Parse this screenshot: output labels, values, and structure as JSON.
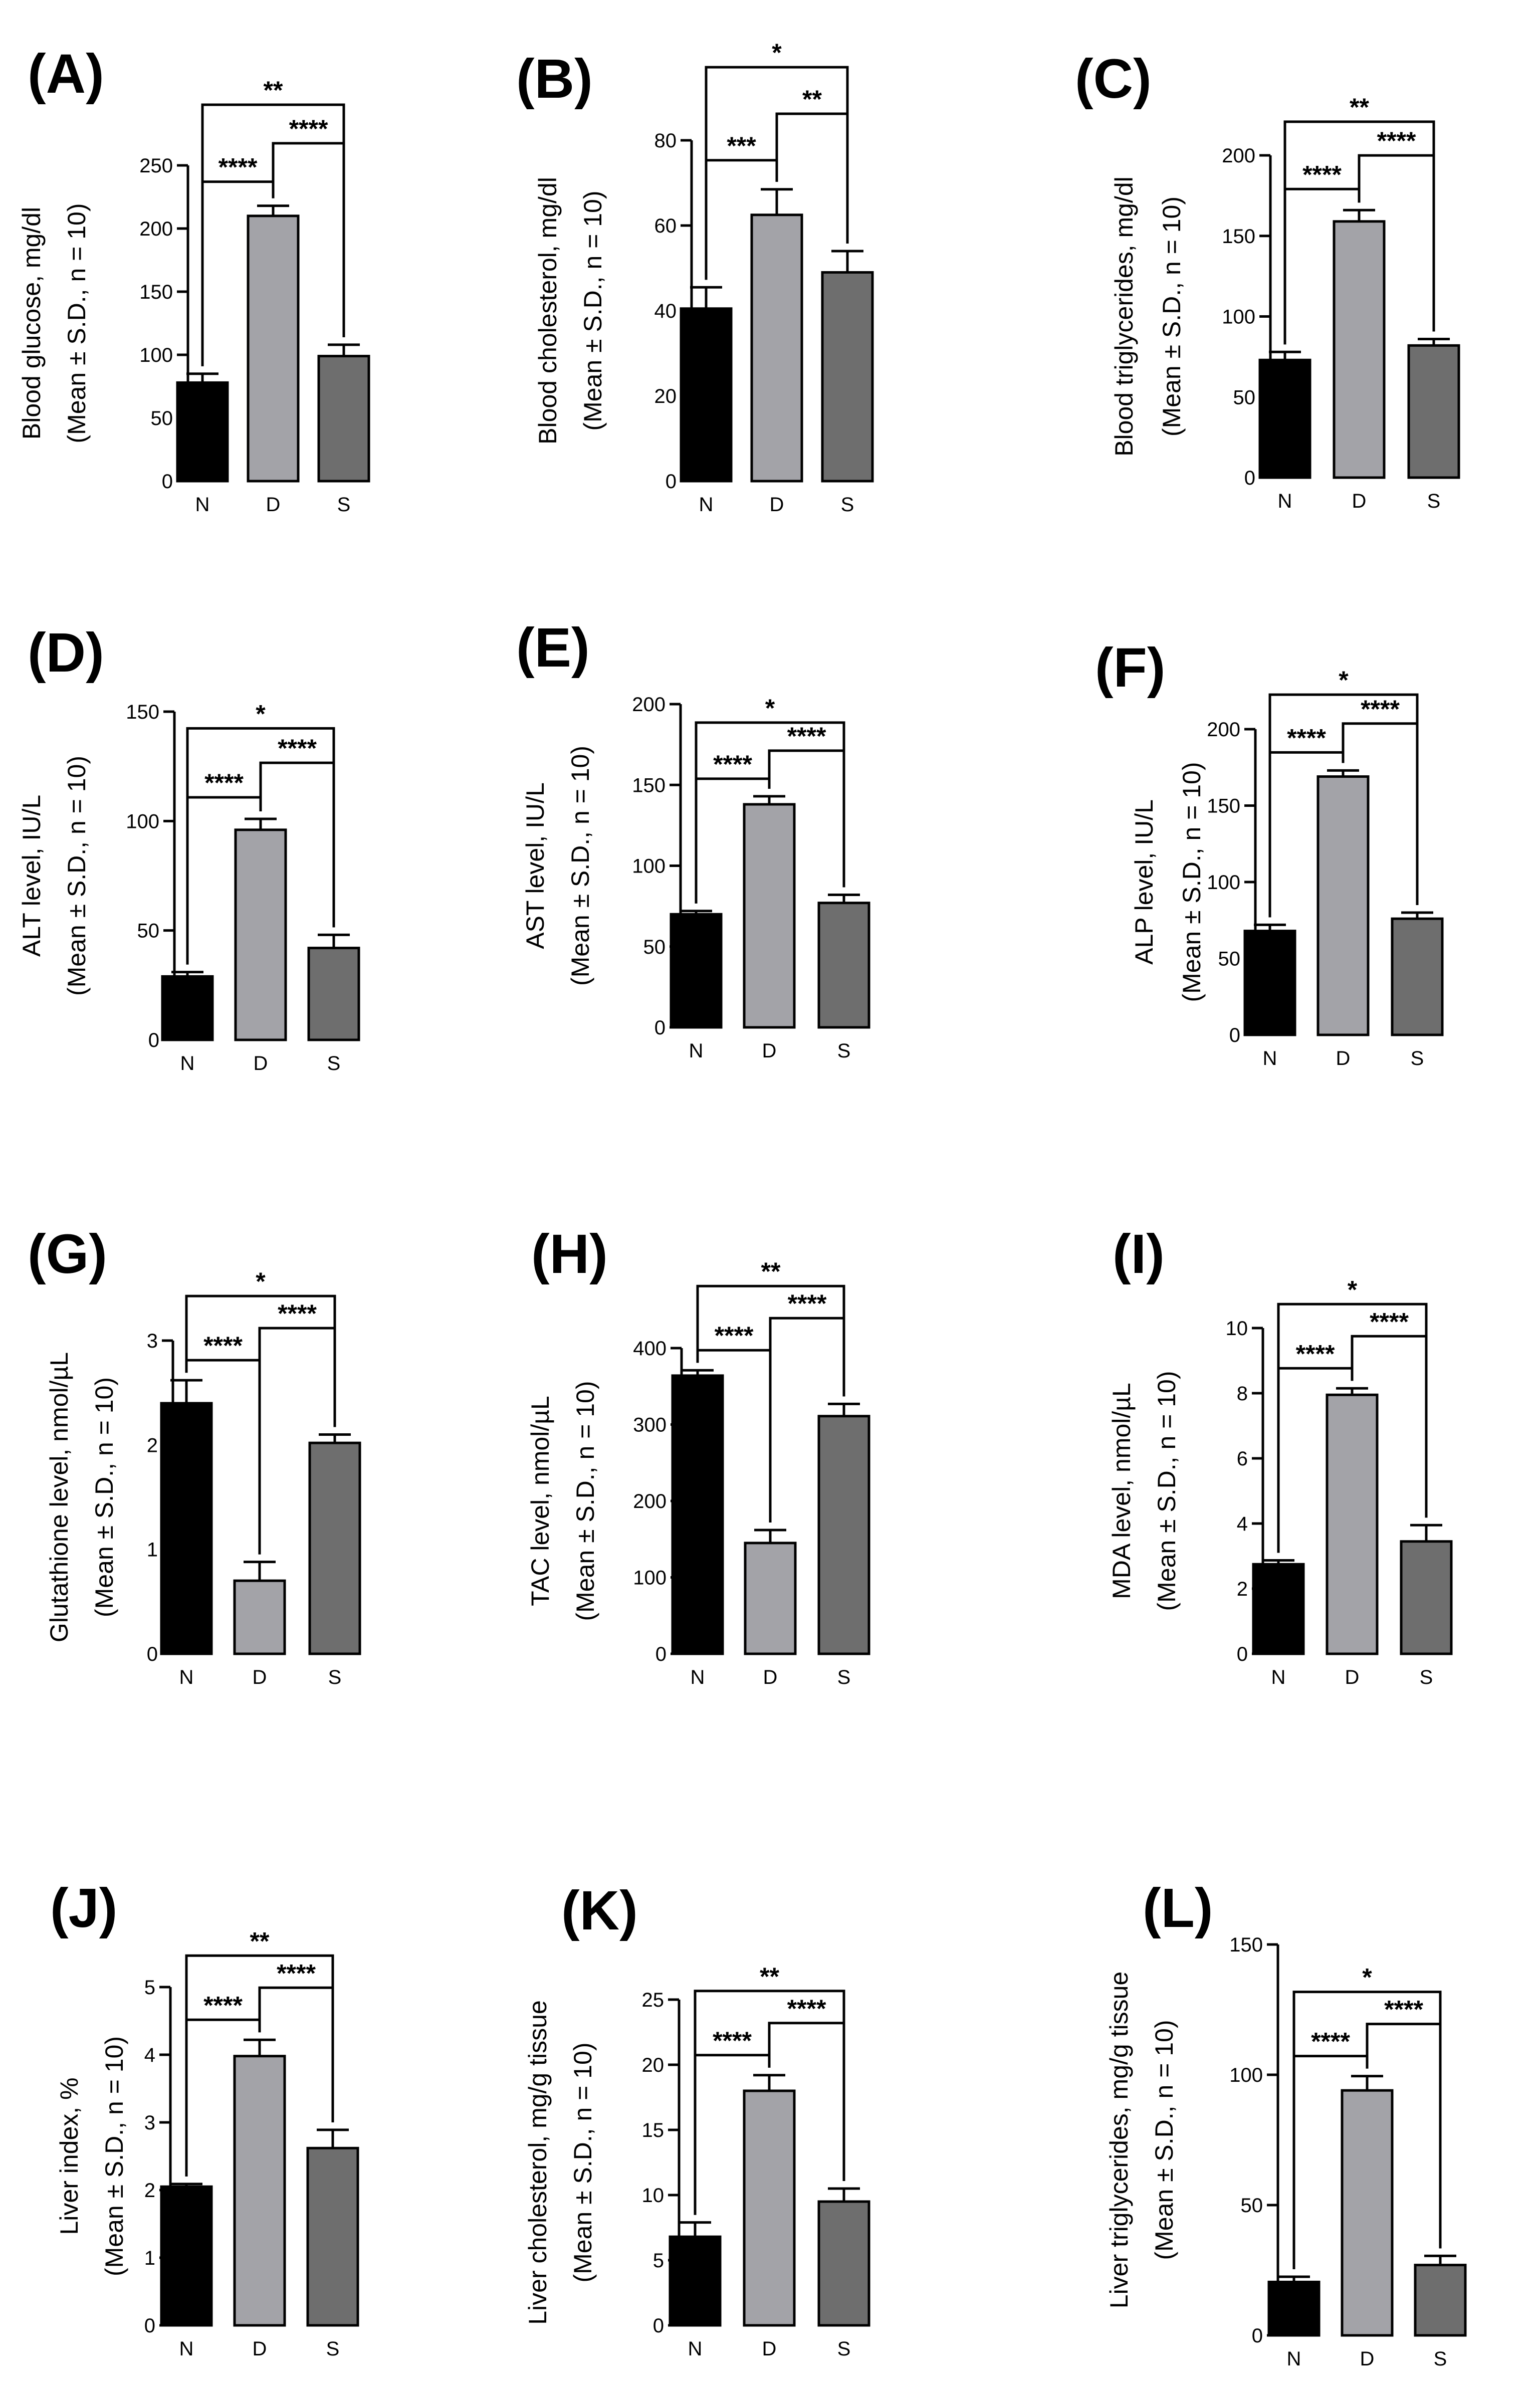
{
  "figure": {
    "groups": [
      "N",
      "D",
      "S"
    ],
    "colors": {
      "N": "#000000",
      "D": "#a3a3a8",
      "S": "#6e6e6e",
      "axis": "#000000"
    }
  },
  "chart_data": [
    {
      "id": "A",
      "label": "(A)",
      "type": "bar",
      "categories": [
        "N",
        "D",
        "S"
      ],
      "values": [
        78,
        210,
        99
      ],
      "errors": [
        7,
        8,
        9
      ],
      "ylabel": [
        "Blood glucose, mg/dl",
        "(Mean ± S.D., n = 10)"
      ],
      "ylim": [
        0,
        250
      ],
      "yticks": [
        0,
        50,
        100,
        150,
        200,
        250
      ],
      "significance": [
        {
          "from": "N",
          "to": "D",
          "label": "****"
        },
        {
          "from": "D",
          "to": "S",
          "label": "****"
        },
        {
          "from": "N",
          "to": "S",
          "label": "**"
        }
      ]
    },
    {
      "id": "B",
      "label": "(B)",
      "type": "bar",
      "categories": [
        "N",
        "D",
        "S"
      ],
      "values": [
        40.5,
        62.5,
        49
      ],
      "errors": [
        5,
        6,
        5
      ],
      "ylabel": [
        "Blood cholesterol, mg/dl",
        "(Mean ± S.D., n = 10)"
      ],
      "ylim": [
        0,
        80
      ],
      "yticks": [
        0,
        20,
        40,
        60,
        80
      ],
      "significance": [
        {
          "from": "N",
          "to": "D",
          "label": "***"
        },
        {
          "from": "D",
          "to": "S",
          "label": "**"
        },
        {
          "from": "N",
          "to": "S",
          "label": "*"
        }
      ]
    },
    {
      "id": "C",
      "label": "(C)",
      "type": "bar",
      "categories": [
        "N",
        "D",
        "S"
      ],
      "values": [
        73,
        159,
        82
      ],
      "errors": [
        5,
        7,
        4
      ],
      "ylabel": [
        "Blood triglycerides, mg/dl",
        "(Mean ± S.D., n = 10)"
      ],
      "ylim": [
        0,
        200
      ],
      "yticks": [
        0,
        50,
        100,
        150,
        200
      ],
      "significance": [
        {
          "from": "N",
          "to": "D",
          "label": "****"
        },
        {
          "from": "D",
          "to": "S",
          "label": "****"
        },
        {
          "from": "N",
          "to": "S",
          "label": "**"
        }
      ]
    },
    {
      "id": "D",
      "label": "(D)",
      "type": "bar",
      "categories": [
        "N",
        "D",
        "S"
      ],
      "values": [
        29,
        96,
        42
      ],
      "errors": [
        2,
        5,
        6
      ],
      "ylabel": [
        "ALT level, IU/L",
        "(Mean ± S.D., n = 10)"
      ],
      "ylim": [
        0,
        150
      ],
      "yticks": [
        0,
        50,
        100,
        150
      ],
      "significance": [
        {
          "from": "N",
          "to": "D",
          "label": "****"
        },
        {
          "from": "D",
          "to": "S",
          "label": "****"
        },
        {
          "from": "N",
          "to": "S",
          "label": "*"
        }
      ]
    },
    {
      "id": "E",
      "label": "(E)",
      "type": "bar",
      "categories": [
        "N",
        "D",
        "S"
      ],
      "values": [
        70,
        138,
        77
      ],
      "errors": [
        2,
        5,
        5
      ],
      "ylabel": [
        "AST level,  IU/L",
        "(Mean ± S.D., n = 10)"
      ],
      "ylim": [
        0,
        200
      ],
      "yticks": [
        0,
        50,
        100,
        150,
        200
      ],
      "significance": [
        {
          "from": "N",
          "to": "D",
          "label": "****"
        },
        {
          "from": "D",
          "to": "S",
          "label": "****"
        },
        {
          "from": "N",
          "to": "S",
          "label": "*"
        }
      ]
    },
    {
      "id": "F",
      "label": "(F)",
      "type": "bar",
      "categories": [
        "N",
        "D",
        "S"
      ],
      "values": [
        68,
        169,
        76
      ],
      "errors": [
        4,
        4,
        4
      ],
      "ylabel": [
        "ALP level, IU/L",
        "(Mean ± S.D., n = 10)"
      ],
      "ylim": [
        0,
        200
      ],
      "yticks": [
        0,
        50,
        100,
        150,
        200
      ],
      "significance": [
        {
          "from": "N",
          "to": "D",
          "label": "****"
        },
        {
          "from": "D",
          "to": "S",
          "label": "****"
        },
        {
          "from": "N",
          "to": "S",
          "label": "*"
        }
      ]
    },
    {
      "id": "G",
      "label": "(G)",
      "type": "bar",
      "categories": [
        "N",
        "D",
        "S"
      ],
      "values": [
        2.4,
        0.7,
        2.02
      ],
      "errors": [
        0.22,
        0.18,
        0.08
      ],
      "ylabel": [
        "Glutathione level, nmol/µL",
        "(Mean ± S.D., n = 10)"
      ],
      "ylim": [
        0,
        3
      ],
      "yticks": [
        0,
        1,
        2,
        3
      ],
      "significance": [
        {
          "from": "N",
          "to": "D",
          "label": "****"
        },
        {
          "from": "D",
          "to": "S",
          "label": "****"
        },
        {
          "from": "N",
          "to": "S",
          "label": "*"
        }
      ]
    },
    {
      "id": "H",
      "label": "(H)",
      "type": "bar",
      "categories": [
        "N",
        "D",
        "S"
      ],
      "values": [
        364,
        145,
        311
      ],
      "errors": [
        7,
        17,
        16
      ],
      "ylabel": [
        "TAC level, nmol/µL",
        "(Mean ± S.D., n = 10)"
      ],
      "ylim": [
        0,
        400
      ],
      "yticks": [
        0,
        100,
        200,
        300,
        400
      ],
      "significance": [
        {
          "from": "N",
          "to": "D",
          "label": "****"
        },
        {
          "from": "D",
          "to": "S",
          "label": "****"
        },
        {
          "from": "N",
          "to": "S",
          "label": "**"
        }
      ]
    },
    {
      "id": "I",
      "label": "(I)",
      "type": "bar",
      "categories": [
        "N",
        "D",
        "S"
      ],
      "values": [
        2.75,
        7.95,
        3.45
      ],
      "errors": [
        0.12,
        0.2,
        0.5
      ],
      "ylabel": [
        "MDA level, nmol/µL",
        "(Mean ± S.D., n = 10)"
      ],
      "ylim": [
        0,
        10
      ],
      "yticks": [
        0,
        2,
        4,
        6,
        8,
        10
      ],
      "significance": [
        {
          "from": "N",
          "to": "D",
          "label": "****"
        },
        {
          "from": "D",
          "to": "S",
          "label": "****"
        },
        {
          "from": "N",
          "to": "S",
          "label": "*"
        }
      ]
    },
    {
      "id": "J",
      "label": "(J)",
      "type": "bar",
      "categories": [
        "N",
        "D",
        "S"
      ],
      "values": [
        2.05,
        3.98,
        2.62
      ],
      "errors": [
        0.04,
        0.24,
        0.27
      ],
      "ylabel": [
        "Liver index, %",
        "(Mean ± S.D., n = 10)"
      ],
      "ylim": [
        0,
        5
      ],
      "yticks": [
        0,
        1,
        2,
        3,
        4,
        5
      ],
      "significance": [
        {
          "from": "N",
          "to": "D",
          "label": "****"
        },
        {
          "from": "D",
          "to": "S",
          "label": "****"
        },
        {
          "from": "N",
          "to": "S",
          "label": "**"
        }
      ]
    },
    {
      "id": "K",
      "label": "(K)",
      "type": "bar",
      "categories": [
        "N",
        "D",
        "S"
      ],
      "values": [
        6.8,
        18,
        9.5
      ],
      "errors": [
        1.1,
        1.2,
        1
      ],
      "ylabel": [
        "Liver cholesterol, mg/g tissue",
        "(Mean ± S.D., n = 10)"
      ],
      "ylim": [
        0,
        25
      ],
      "yticks": [
        0,
        5,
        10,
        15,
        20,
        25
      ],
      "significance": [
        {
          "from": "N",
          "to": "D",
          "label": "****"
        },
        {
          "from": "D",
          "to": "S",
          "label": "****"
        },
        {
          "from": "N",
          "to": "S",
          "label": "**"
        }
      ]
    },
    {
      "id": "L",
      "label": "(L)",
      "type": "bar",
      "categories": [
        "N",
        "D",
        "S"
      ],
      "values": [
        20.5,
        94,
        27
      ],
      "errors": [
        2,
        5.5,
        3.5
      ],
      "ylabel": [
        "Liver triglycerides, mg/g  tissue",
        "(Mean ± S.D., n = 10)"
      ],
      "ylim": [
        0,
        150
      ],
      "yticks": [
        0,
        50,
        100,
        150
      ],
      "significance": [
        {
          "from": "N",
          "to": "D",
          "label": "****"
        },
        {
          "from": "D",
          "to": "S",
          "label": "****"
        },
        {
          "from": "N",
          "to": "S",
          "label": "*"
        }
      ]
    }
  ]
}
